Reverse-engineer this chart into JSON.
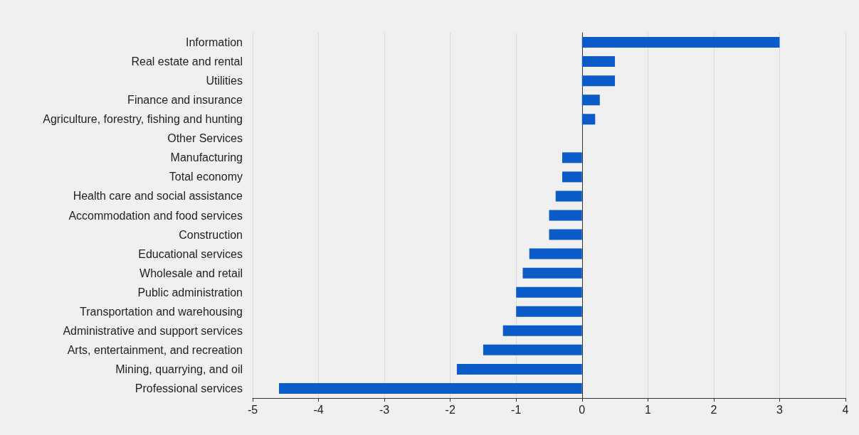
{
  "chart_data": {
    "type": "bar",
    "orientation": "horizontal",
    "categories": [
      "Information",
      "Real estate and rental",
      "Utilities",
      "Finance and insurance",
      "Agriculture, forestry, fishing and hunting",
      "Other Services",
      "Manufacturing",
      "Total economy",
      "Health care and social assistance",
      "Accommodation and food services",
      "Construction",
      "Educational services",
      "Wholesale and retail",
      "Public administration",
      "Transportation and warehousing",
      "Administrative and support services",
      "Arts, entertainment, and recreation",
      "Mining, quarrying, and oil",
      "Professional services"
    ],
    "values": [
      3.0,
      0.5,
      0.5,
      0.27,
      0.2,
      0,
      -0.3,
      -0.3,
      -0.4,
      -0.5,
      -0.5,
      -0.8,
      -0.9,
      -1.0,
      -1.0,
      -1.2,
      -1.5,
      -1.9,
      -4.6
    ],
    "color": "#0b5cc9",
    "xlim": [
      -5,
      4
    ],
    "xticks": [
      -5,
      -4,
      -3,
      -2,
      -1,
      0,
      1,
      2,
      3,
      4
    ],
    "grid": "x"
  }
}
